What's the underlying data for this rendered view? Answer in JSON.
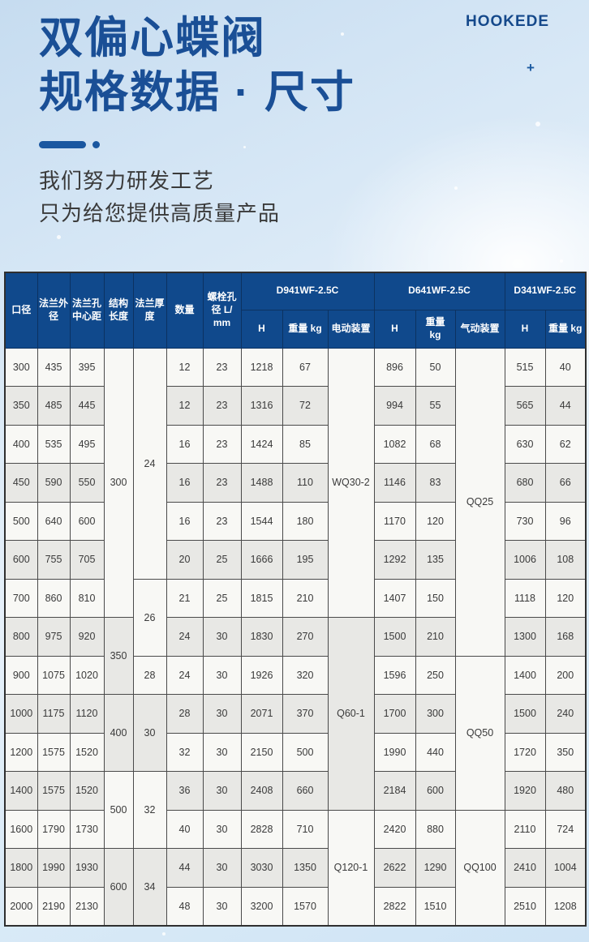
{
  "brand": "HOOKEDE",
  "decor": {
    "plus": "+"
  },
  "hero": {
    "title_line1": "双偏心蝶阀",
    "title_line2": "规格数据 · 尺寸",
    "subtitle_line1": "我们努力研发工艺",
    "subtitle_line2": "只为给您提供高质量产品"
  },
  "colors": {
    "header_blue": "#10498c",
    "title_blue": "#1a4f96",
    "row_white": "#f8f8f5",
    "row_gray": "#e8e8e5",
    "body_border": "#4a4a4a"
  },
  "table": {
    "flat_headers": [
      "口径",
      "法兰外\n径",
      "法兰孔\n中心距",
      "结构\n长度",
      "法兰厚\n度",
      "数量",
      "螺栓孔\n径 L/\nmm"
    ],
    "groups": [
      {
        "label": "D941WF-2.5C",
        "sub": [
          "H",
          "重量 kg",
          "电动装置"
        ]
      },
      {
        "label": "D641WF-2.5C",
        "sub": [
          "H",
          "重量\nkg",
          "气动装置"
        ]
      },
      {
        "label": "D341WF-2.5C",
        "sub": [
          "H",
          "重量 kg"
        ]
      }
    ],
    "rows": [
      [
        "300",
        "435",
        "395",
        {
          "v": "300",
          "rs": 7,
          "bg": "w"
        },
        {
          "v": "24",
          "rs": 6,
          "bg": "w"
        },
        "12",
        "23",
        "1218",
        "67",
        {
          "v": "WQ30-2",
          "rs": 7,
          "bg": "w"
        },
        "896",
        "50",
        {
          "v": "QQ25",
          "rs": 8,
          "bg": "w"
        },
        "515",
        "40"
      ],
      [
        "350",
        "485",
        "445",
        null,
        null,
        "12",
        "23",
        "1316",
        "72",
        null,
        "994",
        "55",
        null,
        "565",
        "44"
      ],
      [
        "400",
        "535",
        "495",
        null,
        null,
        "16",
        "23",
        "1424",
        "85",
        null,
        "1082",
        "68",
        null,
        "630",
        "62"
      ],
      [
        "450",
        "590",
        "550",
        null,
        null,
        "16",
        "23",
        "1488",
        "110",
        null,
        "1146",
        "83",
        null,
        "680",
        "66"
      ],
      [
        "500",
        "640",
        "600",
        null,
        null,
        "16",
        "23",
        "1544",
        "180",
        null,
        "1170",
        "120",
        null,
        "730",
        "96"
      ],
      [
        "600",
        "755",
        "705",
        null,
        null,
        "20",
        "25",
        "1666",
        "195",
        null,
        "1292",
        "135",
        null,
        "1006",
        "108"
      ],
      [
        "700",
        "860",
        "810",
        null,
        {
          "v": "26",
          "rs": 2,
          "bg": "w"
        },
        "21",
        "25",
        "1815",
        "210",
        null,
        "1407",
        "150",
        null,
        "1118",
        "120"
      ],
      [
        "800",
        "975",
        "920",
        {
          "v": "350",
          "rs": 2,
          "bg": "g"
        },
        null,
        "24",
        "30",
        "1830",
        "270",
        {
          "v": "Q60-1",
          "rs": 5,
          "bg": "g"
        },
        "1500",
        "210",
        null,
        "1300",
        "168"
      ],
      [
        "900",
        "1075",
        "1020",
        null,
        "28",
        "24",
        "30",
        "1926",
        "320",
        null,
        "1596",
        "250",
        {
          "v": "QQ50",
          "rs": 4,
          "bg": "w"
        },
        "1400",
        "200"
      ],
      [
        "1000",
        "1175",
        "1120",
        {
          "v": "400",
          "rs": 2,
          "bg": "g"
        },
        {
          "v": "30",
          "rs": 2,
          "bg": "g"
        },
        "28",
        "30",
        "2071",
        "370",
        null,
        "1700",
        "300",
        null,
        "1500",
        "240"
      ],
      [
        "1200",
        "1575",
        "1520",
        null,
        null,
        "32",
        "30",
        "2150",
        "500",
        null,
        "1990",
        "440",
        null,
        "1720",
        "350"
      ],
      [
        "1400",
        "1575",
        "1520",
        {
          "v": "500",
          "rs": 2,
          "bg": "w"
        },
        {
          "v": "32",
          "rs": 2,
          "bg": "w"
        },
        "36",
        "30",
        "2408",
        "660",
        null,
        "2184",
        "600",
        null,
        "1920",
        "480"
      ],
      [
        "1600",
        "1790",
        "1730",
        null,
        null,
        "40",
        "30",
        "2828",
        "710",
        {
          "v": "Q120-1",
          "rs": 3,
          "bg": "w"
        },
        "2420",
        "880",
        {
          "v": "QQ100",
          "rs": 3,
          "bg": "w"
        },
        "2110",
        "724"
      ],
      [
        "1800",
        "1990",
        "1930",
        {
          "v": "600",
          "rs": 2,
          "bg": "g"
        },
        {
          "v": "34",
          "rs": 2,
          "bg": "g"
        },
        "44",
        "30",
        "3030",
        "1350",
        null,
        "2622",
        "1290",
        null,
        "2410",
        "1004"
      ],
      [
        "2000",
        "2190",
        "2130",
        null,
        null,
        "48",
        "30",
        "3200",
        "1570",
        null,
        "2822",
        "1510",
        null,
        "2510",
        "1208"
      ]
    ]
  }
}
